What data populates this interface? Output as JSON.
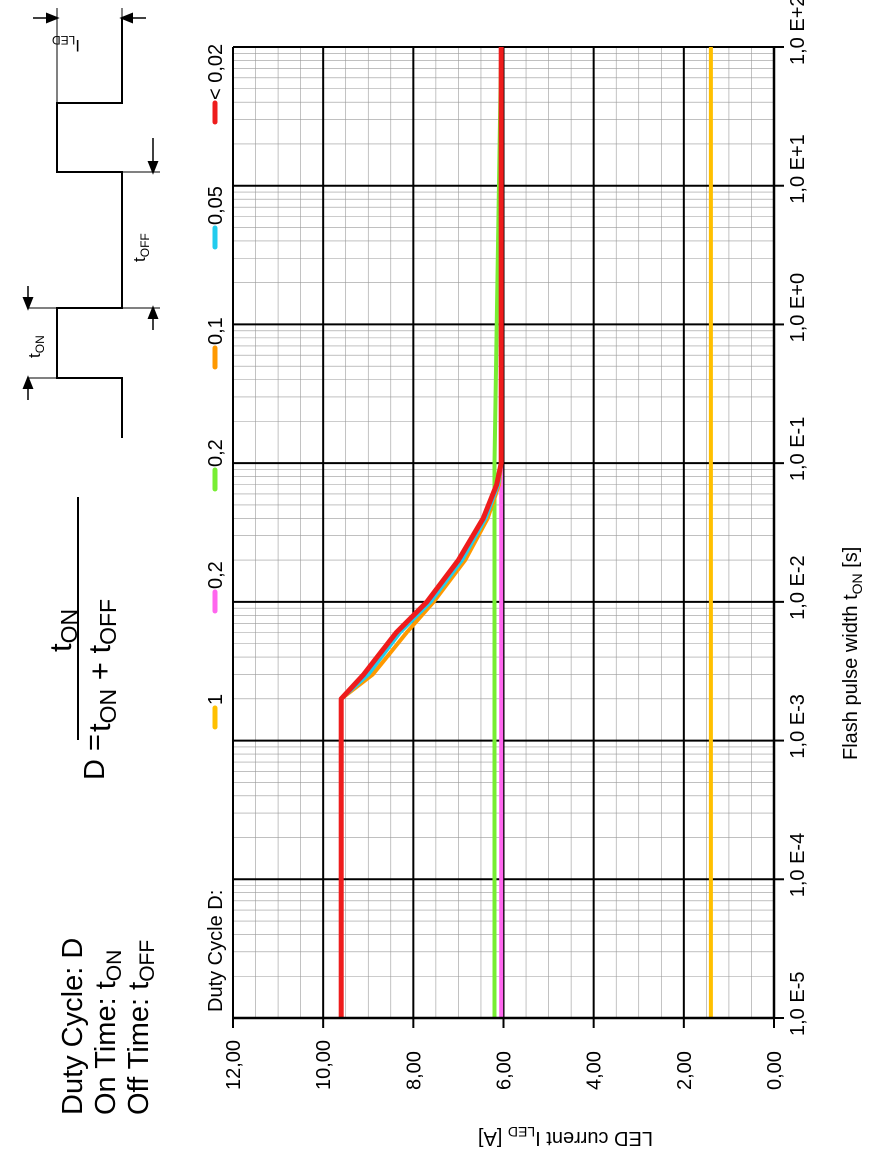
{
  "legend_title": "Duty Cycle D:",
  "definitions": {
    "line1": "Duty Cycle: D",
    "line2_main": "On Time: t",
    "line2_sub": "ON",
    "line3_main": "Off Time: t",
    "line3_sub": "OFF"
  },
  "formula": {
    "lhs": "D =",
    "num_main": "t",
    "num_sub": "ON",
    "den_t1": "t",
    "den_s1": "ON",
    "den_plus": " + t",
    "den_s2": "OFF"
  },
  "waveform": {
    "t_on_main": "t",
    "t_on_sub": "ON",
    "t_off_main": "t",
    "t_off_sub": "OFF",
    "i_led_main": "I",
    "i_led_sub": "LED"
  },
  "axes": {
    "x_label_main": "Flash pulse width t",
    "x_label_sub": "ON",
    "x_label_end": " [s]",
    "y_label_main": "LED current I",
    "y_label_sub": "LED",
    "y_label_end": " [A]"
  },
  "chart_data": {
    "type": "line",
    "x_scale": "log",
    "xlim": [
      1e-05,
      100
    ],
    "ylim": [
      0,
      12
    ],
    "x_ticks": [
      "1,0 E-5",
      "1,0 E-4",
      "1,0 E-3",
      "1,0 E-2",
      "1,0 E-1",
      "1,0 E+0",
      "1,0 E+1",
      "1,0 E+2"
    ],
    "y_ticks": [
      "0,00",
      "2,00",
      "4,00",
      "6,00",
      "8,00",
      "10,00",
      "12,00"
    ],
    "grid": true,
    "legend_placement": "top",
    "series": [
      {
        "name": "1",
        "color": "#ffc000",
        "x": [
          1e-05,
          100
        ],
        "y": [
          1.4,
          1.4
        ]
      },
      {
        "name": "0,2",
        "color": "#ff66ee",
        "x": [
          1e-05,
          100
        ],
        "y": [
          6.05,
          6.05
        ]
      },
      {
        "name": "0,2",
        "color": "#77ee33",
        "x": [
          1e-05,
          0.1,
          100
        ],
        "y": [
          6.2,
          6.2,
          6.05
        ]
      },
      {
        "name": "0,1",
        "color": "#ff9900",
        "x": [
          1e-05,
          0.002,
          0.003,
          0.006,
          0.01,
          0.02,
          0.04,
          0.07,
          0.1,
          100
        ],
        "y": [
          9.6,
          9.6,
          8.9,
          8.15,
          7.55,
          6.85,
          6.35,
          6.1,
          6.05,
          6.05
        ]
      },
      {
        "name": "0,05",
        "color": "#22ccee",
        "x": [
          1e-05,
          0.002,
          0.003,
          0.006,
          0.01,
          0.02,
          0.04,
          0.07,
          0.1,
          100
        ],
        "y": [
          9.6,
          9.6,
          9.0,
          8.3,
          7.62,
          6.92,
          6.4,
          6.12,
          6.05,
          6.05
        ]
      },
      {
        "name": "< 0,02",
        "color": "#ee1c1c",
        "x": [
          1e-05,
          0.002,
          0.003,
          0.006,
          0.01,
          0.02,
          0.04,
          0.07,
          0.1,
          100
        ],
        "y": [
          9.6,
          9.6,
          9.1,
          8.38,
          7.7,
          7.0,
          6.45,
          6.15,
          6.05,
          6.05
        ]
      }
    ]
  }
}
